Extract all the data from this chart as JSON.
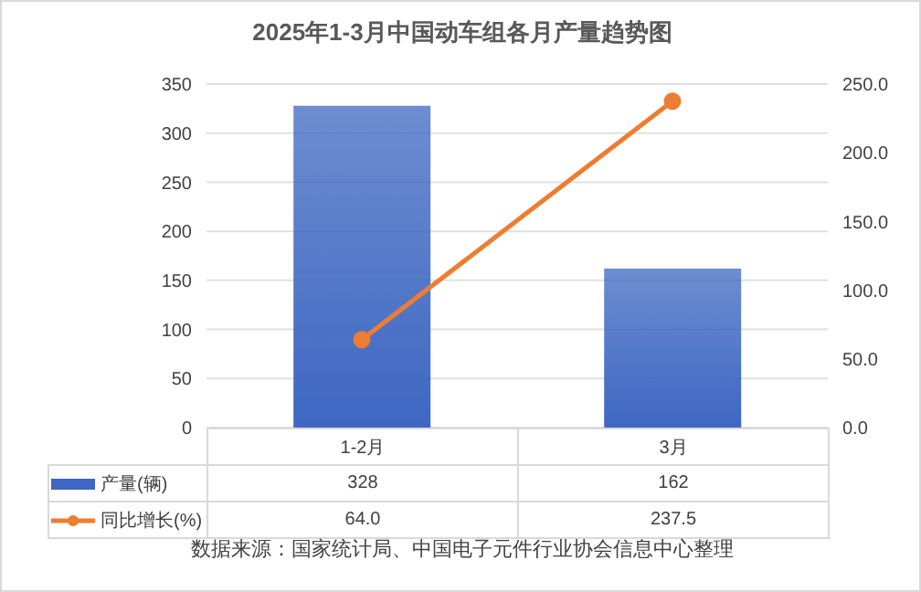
{
  "chart_data": {
    "type": "bar",
    "title": "2025年1-3月中国动车组各月产量趋势图",
    "categories": [
      "1-2月",
      "3月"
    ],
    "series": [
      {
        "name": "产量(辆)",
        "color": "#3d67c2",
        "values": [
          328,
          162
        ],
        "value_labels": [
          "328",
          "162"
        ]
      },
      {
        "name": "同比增长(%)",
        "type": "line",
        "axis": "y2",
        "color": "#ed7d31",
        "values": [
          64.0,
          237.5
        ],
        "value_labels": [
          "64.0",
          "237.5"
        ]
      }
    ],
    "ylim": [
      0,
      350
    ],
    "yticks": [
      0,
      50,
      100,
      150,
      200,
      250,
      300,
      350
    ],
    "y2lim": [
      0,
      250
    ],
    "y2ticks": [
      {
        "value": 0,
        "label": "0.0"
      },
      {
        "value": 50,
        "label": "50.0"
      },
      {
        "value": 100,
        "label": "100.0"
      },
      {
        "value": 150,
        "label": "150.0"
      },
      {
        "value": 200,
        "label": "200.0"
      },
      {
        "value": 250,
        "label": "250.0"
      }
    ],
    "grid": "y",
    "legend": "bottom",
    "marker": "circle",
    "line_style": "solid",
    "annotations": [
      "数据来源：国家统计局、中国电子元件行业协会信息中心整理"
    ]
  }
}
